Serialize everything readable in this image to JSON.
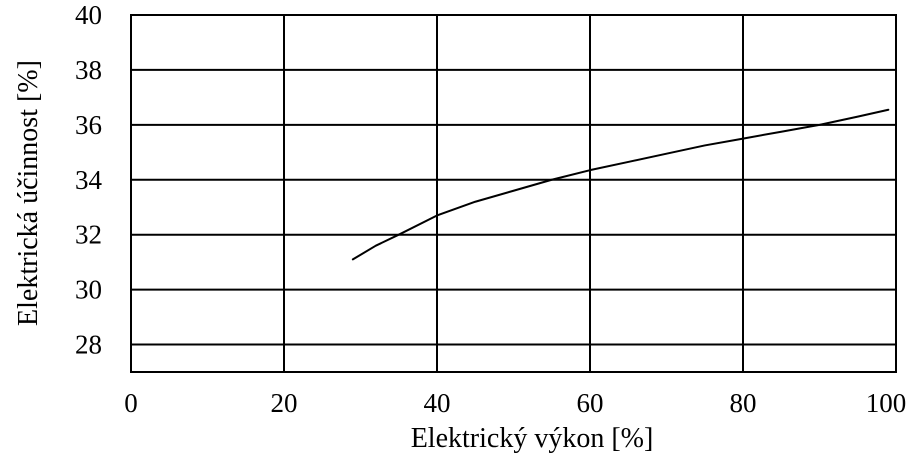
{
  "chart_data": {
    "type": "line",
    "title": "",
    "xlabel": "Elektrický výkon [%]",
    "ylabel": "Elektrická účinnost [%]",
    "xlim": [
      0,
      100
    ],
    "ylim": [
      27,
      40
    ],
    "xticks": [
      0,
      20,
      40,
      60,
      80,
      100
    ],
    "yticks": [
      28,
      30,
      32,
      34,
      36,
      38,
      40
    ],
    "xtick_labels": [
      "0",
      "20",
      "40",
      "60",
      "80",
      "100"
    ],
    "ytick_labels": [
      "28",
      "30",
      "32",
      "34",
      "36",
      "38",
      "40"
    ],
    "grid": true,
    "line_color": "#000000",
    "series": [
      {
        "name": "",
        "x": [
          29,
          32,
          35,
          40,
          45,
          50,
          55,
          60,
          65,
          70,
          75,
          80,
          85,
          90,
          95,
          99
        ],
        "y": [
          31.1,
          31.6,
          32.0,
          32.7,
          33.2,
          33.6,
          34.0,
          34.35,
          34.65,
          34.95,
          35.25,
          35.5,
          35.75,
          36.0,
          36.3,
          36.55
        ]
      }
    ]
  }
}
